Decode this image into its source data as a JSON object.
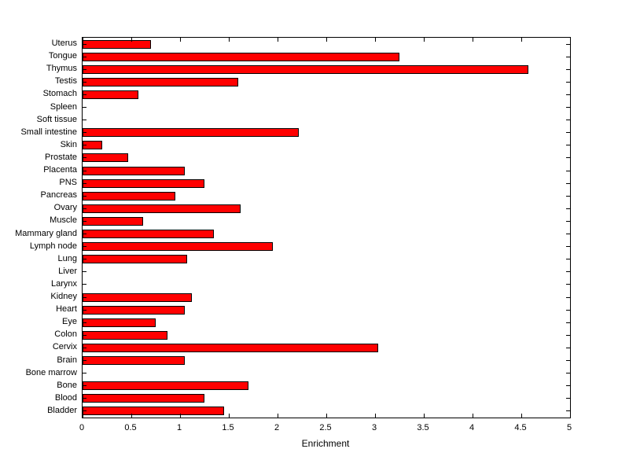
{
  "chart_data": {
    "type": "bar",
    "orientation": "horizontal",
    "title": "",
    "xlabel": "Enrichment",
    "ylabel": "",
    "xlim": [
      0,
      5
    ],
    "xticks": [
      0,
      0.5,
      1,
      1.5,
      2,
      2.5,
      3,
      3.5,
      4,
      4.5,
      5
    ],
    "grid": false,
    "bar_color": "#ff0000",
    "bar_edge_color": "#000000",
    "categories": [
      "Uterus",
      "Tongue",
      "Thymus",
      "Testis",
      "Stomach",
      "Spleen",
      "Soft tissue",
      "Small intestine",
      "Skin",
      "Prostate",
      "Placenta",
      "PNS",
      "Pancreas",
      "Ovary",
      "Muscle",
      "Mammary gland",
      "Lymph node",
      "Lung",
      "Liver",
      "Larynx",
      "Kidney",
      "Heart",
      "Eye",
      "Colon",
      "Cervix",
      "Brain",
      "Bone marrow",
      "Bone",
      "Blood",
      "Bladder"
    ],
    "values": [
      0.7,
      3.25,
      4.57,
      1.6,
      0.57,
      0,
      0,
      2.22,
      0.2,
      0.47,
      1.05,
      1.25,
      0.95,
      1.62,
      0.62,
      1.35,
      1.95,
      1.07,
      0,
      0,
      1.12,
      1.05,
      0.75,
      0.87,
      3.03,
      1.05,
      0,
      1.7,
      1.25,
      1.45
    ]
  }
}
